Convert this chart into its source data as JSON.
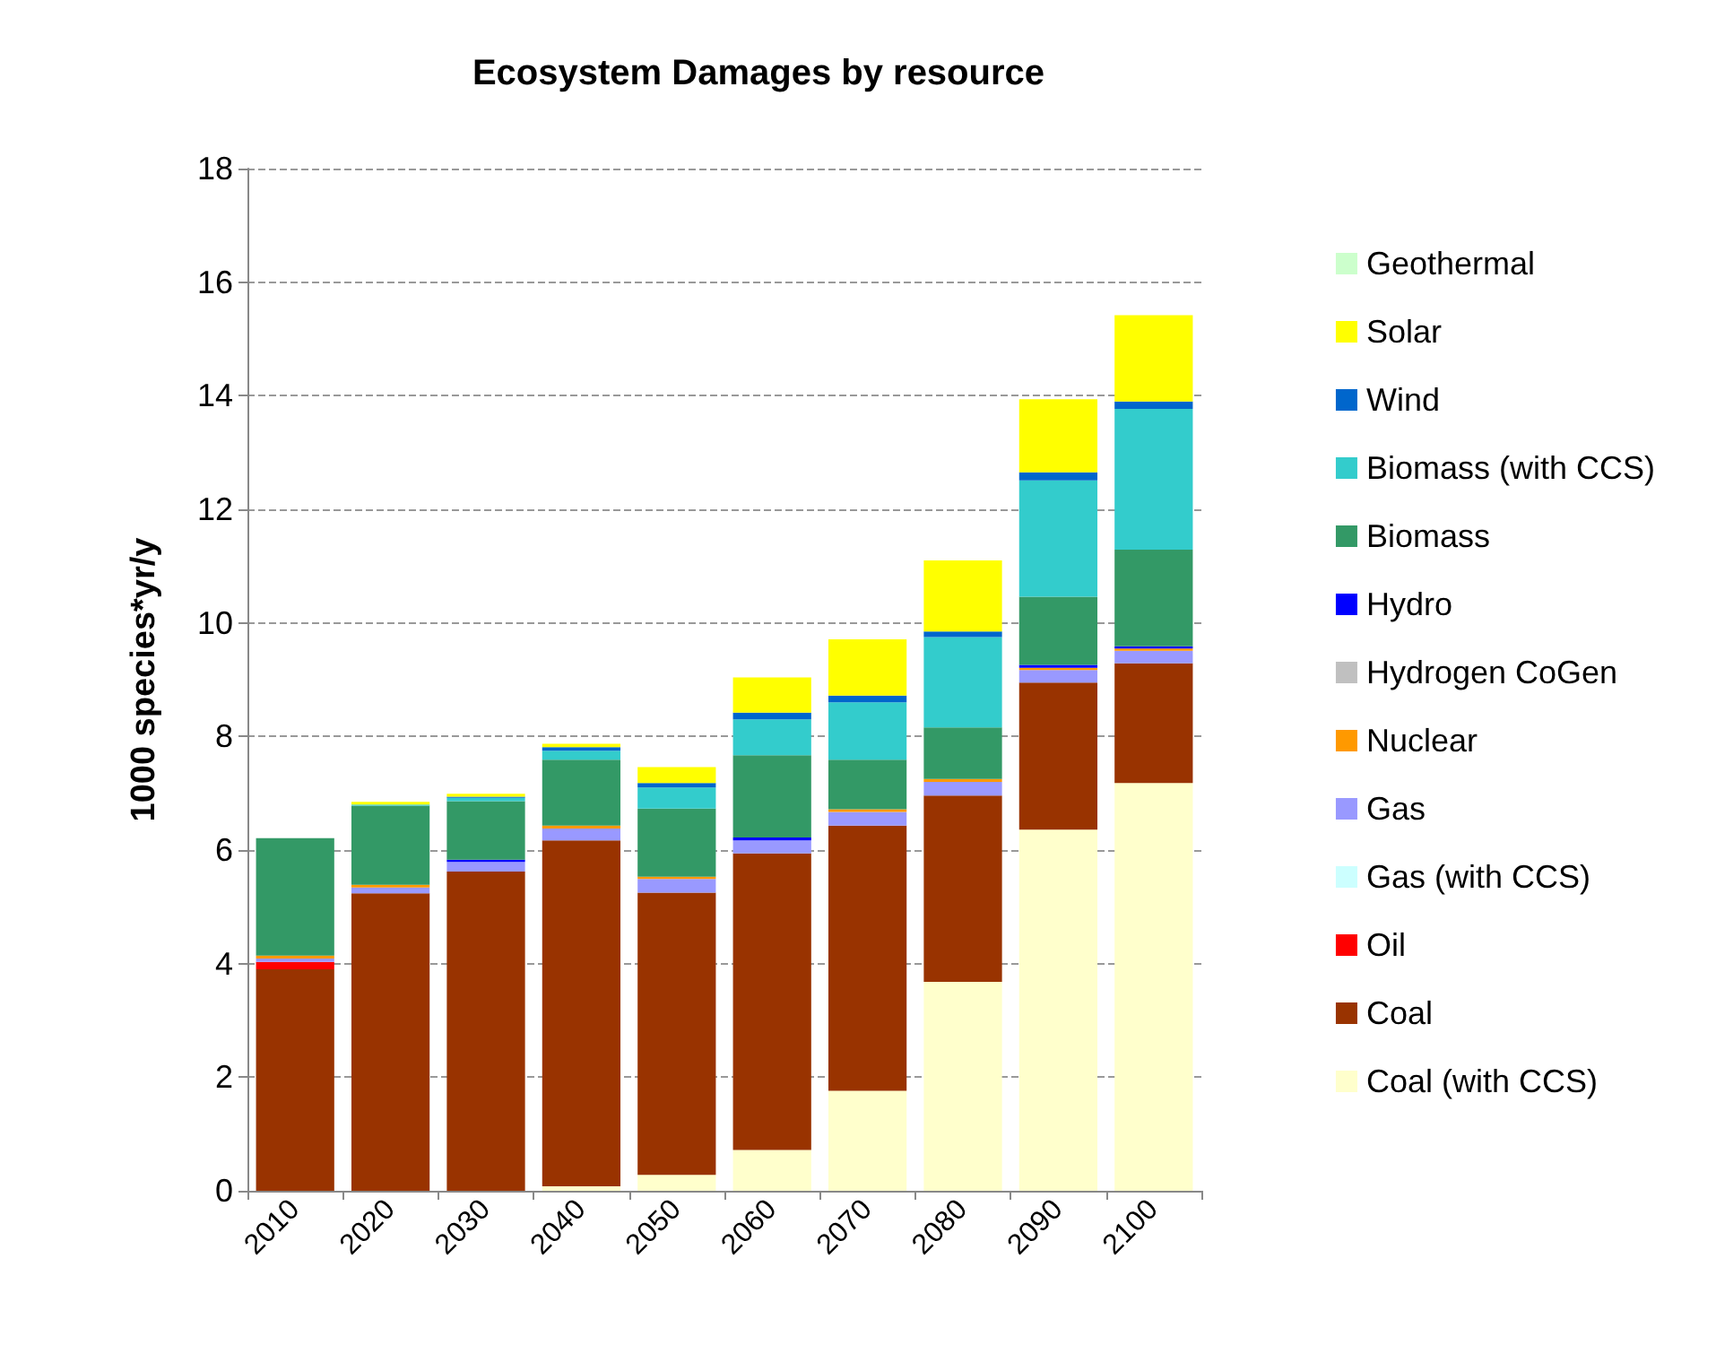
{
  "chart_data": {
    "type": "bar",
    "title": "Ecosystem Damages by resource",
    "ylabel": "1000 species*yr/y",
    "categories": [
      "2010",
      "2020",
      "2030",
      "2040",
      "2050",
      "2060",
      "2070",
      "2080",
      "2090",
      "2100"
    ],
    "stacked": true,
    "ylim": [
      0,
      18
    ],
    "yticks": [
      0,
      2,
      4,
      6,
      8,
      10,
      12,
      14,
      16,
      18
    ],
    "grid": "y",
    "legend": "right",
    "series": [
      {
        "name": "Coal (with CCS)",
        "color": "#ffffcc",
        "values": [
          0,
          0,
          0,
          0.08,
          0.28,
          0.72,
          1.76,
          3.68,
          6.36,
          7.18
        ]
      },
      {
        "name": "Coal",
        "color": "#993300",
        "values": [
          3.9,
          5.24,
          5.62,
          6.09,
          4.97,
          5.22,
          4.67,
          3.28,
          2.59,
          2.11
        ]
      },
      {
        "name": "Oil",
        "color": "#ff0000",
        "values": [
          0.13,
          0,
          0,
          0,
          0,
          0,
          0,
          0,
          0,
          0
        ]
      },
      {
        "name": "Gas (with CCS)",
        "color": "#ccffff",
        "values": [
          0,
          0,
          0,
          0,
          0,
          0,
          0,
          0,
          0,
          0
        ]
      },
      {
        "name": "Gas",
        "color": "#9999ff",
        "values": [
          0.06,
          0.1,
          0.17,
          0.21,
          0.24,
          0.23,
          0.24,
          0.24,
          0.22,
          0.22
        ]
      },
      {
        "name": "Nuclear",
        "color": "#ff9900",
        "values": [
          0.05,
          0.05,
          0,
          0.05,
          0.04,
          0,
          0.05,
          0.05,
          0.04,
          0.04
        ]
      },
      {
        "name": "Hydrogen CoGen",
        "color": "#c0c0c0",
        "values": [
          0,
          0,
          0,
          0,
          0,
          0,
          0,
          0,
          0,
          0
        ]
      },
      {
        "name": "Hydro",
        "color": "#0000ff",
        "values": [
          0,
          0,
          0.04,
          0,
          0,
          0.05,
          0,
          0,
          0.05,
          0.04
        ]
      },
      {
        "name": "Biomass",
        "color": "#339966",
        "values": [
          2.07,
          1.39,
          1.03,
          1.16,
          1.2,
          1.45,
          0.87,
          0.91,
          1.2,
          1.7
        ]
      },
      {
        "name": "Biomass (with CCS)",
        "color": "#33cccc",
        "values": [
          0,
          0.02,
          0.06,
          0.16,
          0.37,
          0.63,
          1.01,
          1.59,
          2.05,
          2.48
        ]
      },
      {
        "name": "Wind",
        "color": "#0066cc",
        "values": [
          0,
          0,
          0.02,
          0.06,
          0.08,
          0.12,
          0.12,
          0.1,
          0.14,
          0.13
        ]
      },
      {
        "name": "Solar",
        "color": "#ffff00",
        "values": [
          0,
          0.05,
          0.05,
          0.06,
          0.28,
          0.62,
          0.99,
          1.25,
          1.29,
          1.52
        ]
      },
      {
        "name": "Geothermal",
        "color": "#ccffcc",
        "values": [
          0,
          0,
          0,
          0,
          0,
          0,
          0,
          0,
          0,
          0
        ]
      }
    ]
  }
}
